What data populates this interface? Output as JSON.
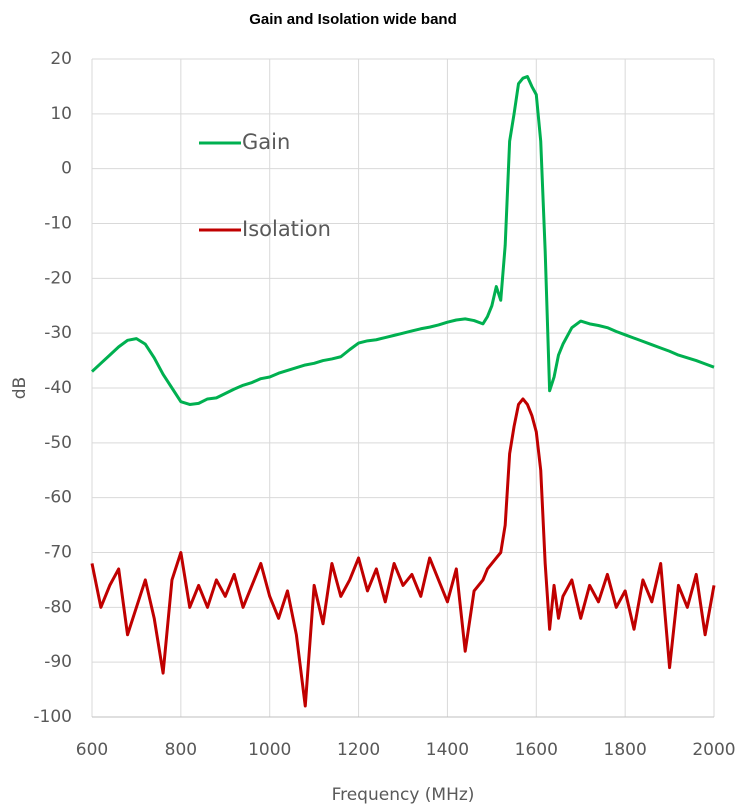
{
  "chart_data": {
    "type": "line",
    "title": "Gain and Isolation wide band",
    "x_label": "Frequency (MHz)",
    "y_label": "dB",
    "x": [
      600,
      620,
      640,
      660,
      680,
      700,
      720,
      740,
      760,
      780,
      800,
      820,
      840,
      860,
      880,
      900,
      920,
      940,
      960,
      980,
      1000,
      1020,
      1040,
      1060,
      1080,
      1100,
      1120,
      1140,
      1160,
      1180,
      1200,
      1220,
      1240,
      1260,
      1280,
      1300,
      1320,
      1340,
      1360,
      1380,
      1400,
      1420,
      1440,
      1460,
      1480,
      1490,
      1500,
      1510,
      1520,
      1530,
      1540,
      1550,
      1560,
      1570,
      1580,
      1590,
      1600,
      1610,
      1620,
      1630,
      1640,
      1650,
      1660,
      1680,
      1700,
      1720,
      1740,
      1760,
      1780,
      1800,
      1820,
      1840,
      1860,
      1880,
      1900,
      1920,
      1940,
      1960,
      1980,
      2000
    ],
    "series": [
      {
        "name": "Gain",
        "color": "#00b050",
        "values": [
          -37,
          -35.5,
          -34,
          -32.5,
          -31.3,
          -31,
          -32,
          -34.5,
          -37.5,
          -40,
          -42.5,
          -43,
          -42.8,
          -42,
          -41.8,
          -41,
          -40.2,
          -39.5,
          -39,
          -38.3,
          -38,
          -37.3,
          -36.8,
          -36.3,
          -35.8,
          -35.5,
          -35,
          -34.7,
          -34.3,
          -33,
          -31.8,
          -31.4,
          -31.2,
          -30.8,
          -30.4,
          -30,
          -29.6,
          -29.2,
          -28.9,
          -28.5,
          -28,
          -27.6,
          -27.4,
          -27.7,
          -28.3,
          -27,
          -25,
          -21.5,
          -24,
          -14,
          5,
          10,
          15.5,
          16.5,
          16.8,
          15,
          13.5,
          5,
          -15,
          -40.5,
          -38,
          -34,
          -32,
          -29,
          -27.8,
          -28.3,
          -28.6,
          -29,
          -29.7,
          -30.3,
          -30.9,
          -31.5,
          -32.1,
          -32.7,
          -33.3,
          -34,
          -34.5,
          -35,
          -35.6,
          -36.2
        ]
      },
      {
        "name": "Isolation",
        "color": "#c00000",
        "values": [
          -72,
          -80,
          -76,
          -73,
          -85,
          -80,
          -75,
          -82,
          -92,
          -75,
          -70,
          -80,
          -76,
          -80,
          -75,
          -78,
          -74,
          -80,
          -76,
          -72,
          -78,
          -82,
          -77,
          -85,
          -98,
          -76,
          -83,
          -72,
          -78,
          -75,
          -71,
          -77,
          -73,
          -79,
          -72,
          -76,
          -74,
          -78,
          -71,
          -75,
          -79,
          -73,
          -88,
          -77,
          -75,
          -73,
          -72,
          -71,
          -70,
          -65,
          -52,
          -47,
          -43,
          -42,
          -43,
          -45,
          -48,
          -55,
          -72,
          -84,
          -76,
          -82,
          -78,
          -75,
          -82,
          -76,
          -79,
          -74,
          -80,
          -77,
          -84,
          -75,
          -79,
          -72,
          -91,
          -76,
          -80,
          -74,
          -85,
          -76
        ]
      }
    ],
    "xlim": [
      600,
      2000
    ],
    "xticks": [
      600,
      800,
      1000,
      1200,
      1400,
      1600,
      1800,
      2000
    ],
    "ylim": [
      -100,
      20
    ],
    "yticks": [
      -100,
      -90,
      -80,
      -70,
      -60,
      -50,
      -40,
      -30,
      -20,
      -10,
      0,
      10,
      20
    ],
    "grid": true
  }
}
